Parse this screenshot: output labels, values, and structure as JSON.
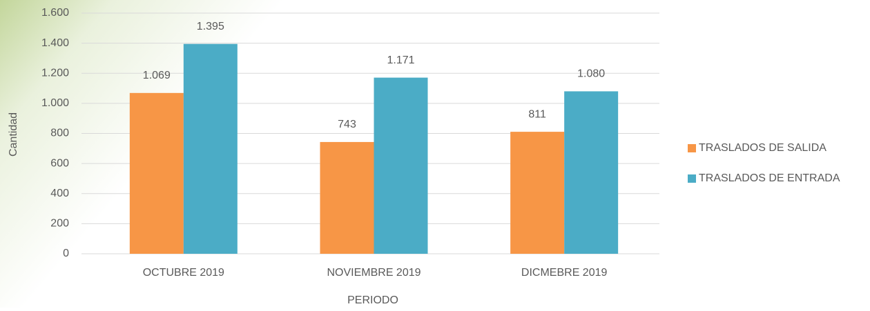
{
  "chart_data": {
    "type": "bar",
    "categories": [
      "OCTUBRE 2019",
      "NOVIEMBRE 2019",
      "DICMEBRE 2019"
    ],
    "series": [
      {
        "name": "TRASLADOS DE SALIDA",
        "color": "#f79646",
        "values": [
          1069,
          743,
          811
        ],
        "value_labels": [
          "1.069",
          "743",
          "811"
        ]
      },
      {
        "name": "TRASLADOS DE ENTRADA",
        "color": "#4bacc6",
        "values": [
          1395,
          1171,
          1080
        ],
        "value_labels": [
          "1.395",
          "1.171",
          "1.080"
        ]
      }
    ],
    "ylim": [
      0,
      1600
    ],
    "yticks": [
      0,
      200,
      400,
      600,
      800,
      {
        "value": 1000,
        "label": "1.000"
      },
      {
        "value": 1200,
        "label": "1.200"
      },
      {
        "value": 1400,
        "label": "1.400"
      },
      {
        "value": 1600,
        "label": "1.600"
      }
    ],
    "y_label": "Cantidad",
    "x_label": "PERIODO",
    "grid": true,
    "legend": "right"
  }
}
